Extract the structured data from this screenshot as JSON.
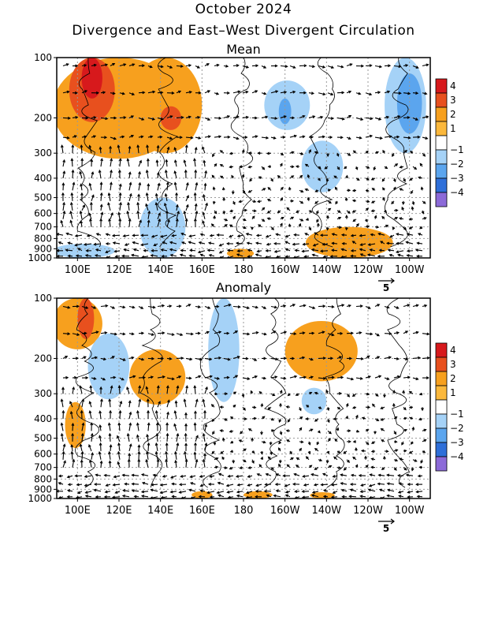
{
  "header": {
    "title": "October 2024",
    "subtitle": "Divergence and East–West Divergent Circulation"
  },
  "colors": {
    "dark_red": "#d7191c",
    "red": "#e8501e",
    "orange": "#f7a01e",
    "light_orange": "#fbb83c",
    "white": "#ffffff",
    "light_blue": "#a5d2f7",
    "blue": "#5ba5ee",
    "dark_blue": "#2e6fd9",
    "darker_blue": "#2140c4",
    "purple": "#8c6ad8"
  },
  "chart_data": [
    {
      "type": "heatmap",
      "title": "Mean",
      "x_tick_labels": [
        "100E",
        "120E",
        "140E",
        "160E",
        "180",
        "160W",
        "140W",
        "120W",
        "100W"
      ],
      "y_tick_labels": [
        "100",
        "200",
        "300",
        "400",
        "500",
        "600",
        "700",
        "800",
        "900",
        "1000"
      ],
      "vector_key": "5",
      "regions": [
        {
          "level": "2",
          "lon": [
            88,
            152
          ],
          "p": [
            100,
            320
          ]
        },
        {
          "level": "3",
          "lon": [
            96,
            118
          ],
          "p": [
            100,
            210
          ]
        },
        {
          "level": "4",
          "lon": [
            102,
            112
          ],
          "p": [
            100,
            160
          ]
        },
        {
          "level": "2",
          "lon": [
            125,
            160
          ],
          "p": [
            100,
            300
          ]
        },
        {
          "level": "3",
          "lon": [
            140,
            150
          ],
          "p": [
            175,
            230
          ]
        },
        {
          "level": "-1",
          "lon": [
            -170,
            -148
          ],
          "p": [
            130,
            230
          ]
        },
        {
          "level": "-2",
          "lon": [
            -163,
            -157
          ],
          "p": [
            160,
            215
          ]
        },
        {
          "level": "-1",
          "lon": [
            -152,
            -132
          ],
          "p": [
            260,
            470
          ]
        },
        {
          "level": "-1",
          "lon": [
            -112,
            -92
          ],
          "p": [
            100,
            300
          ]
        },
        {
          "level": "-2",
          "lon": [
            -106,
            -94
          ],
          "p": [
            120,
            240
          ]
        },
        {
          "level": "-1",
          "lon": [
            130,
            152
          ],
          "p": [
            500,
            1000
          ]
        },
        {
          "level": "-1",
          "lon": [
            88,
            118
          ],
          "p": [
            850,
            1000
          ]
        },
        {
          "level": "2",
          "lon": [
            -150,
            -108
          ],
          "p": [
            700,
            1000
          ]
        },
        {
          "level": "2",
          "lon": [
            172,
            185
          ],
          "p": [
            900,
            1000
          ]
        }
      ],
      "zero_contours": 5
    },
    {
      "type": "heatmap",
      "title": "Anomaly",
      "x_tick_labels": [
        "100E",
        "120E",
        "140E",
        "160E",
        "180",
        "160W",
        "140W",
        "120W",
        "100W"
      ],
      "y_tick_labels": [
        "100",
        "200",
        "300",
        "400",
        "500",
        "600",
        "700",
        "800",
        "900",
        "1000"
      ],
      "vector_key": "5",
      "regions": [
        {
          "level": "2",
          "lon": [
            88,
            112
          ],
          "p": [
            100,
            180
          ]
        },
        {
          "level": "3",
          "lon": [
            100,
            108
          ],
          "p": [
            100,
            160
          ]
        },
        {
          "level": "2",
          "lon": [
            125,
            152
          ],
          "p": [
            180,
            340
          ]
        },
        {
          "level": "2",
          "lon": [
            -160,
            -125
          ],
          "p": [
            130,
            260
          ]
        },
        {
          "level": "-1",
          "lon": [
            163,
            178
          ],
          "p": [
            100,
            330
          ]
        },
        {
          "level": "-1",
          "lon": [
            -152,
            -140
          ],
          "p": [
            280,
            380
          ]
        },
        {
          "level": "2",
          "lon": [
            94,
            104
          ],
          "p": [
            330,
            560
          ]
        },
        {
          "level": "-1",
          "lon": [
            105,
            125
          ],
          "p": [
            150,
            320
          ]
        },
        {
          "level": "2",
          "lon": [
            155,
            165
          ],
          "p": [
            920,
            1000
          ]
        },
        {
          "level": "2",
          "lon": [
            180,
            194
          ],
          "p": [
            920,
            1000
          ]
        },
        {
          "level": "2",
          "lon": [
            -148,
            -136
          ],
          "p": [
            930,
            1000
          ]
        }
      ],
      "zero_contours": 6
    }
  ],
  "colorbar": {
    "labels": [
      "4",
      "3",
      "2",
      "1",
      "−1",
      "−2",
      "−3",
      "−4"
    ]
  }
}
